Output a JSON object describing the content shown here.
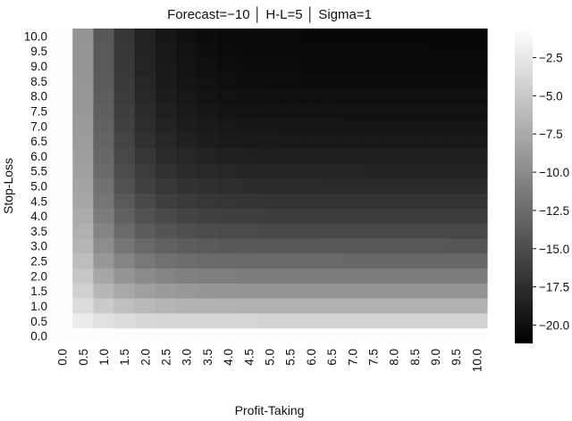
{
  "chart_data": {
    "type": "heatmap",
    "title": "Forecast=−10 │ H-L=5 │ Sigma=1",
    "xlabel": "Profit-Taking",
    "ylabel": "Stop-Loss",
    "x_ticks": [
      "0.0",
      "0.5",
      "1.0",
      "1.5",
      "2.0",
      "2.5",
      "3.0",
      "3.5",
      "4.0",
      "4.5",
      "5.0",
      "5.5",
      "6.0",
      "6.5",
      "7.0",
      "7.5",
      "8.0",
      "8.5",
      "9.0",
      "9.5",
      "10.0"
    ],
    "y_ticks": [
      "10.0",
      "9.5",
      "9.0",
      "8.5",
      "8.0",
      "7.5",
      "7.0",
      "6.5",
      "6.0",
      "5.5",
      "5.0",
      "4.5",
      "4.0",
      "3.5",
      "3.0",
      "2.5",
      "2.0",
      "1.5",
      "1.0",
      "0.5",
      "0.0"
    ],
    "x_range": [
      0,
      10
    ],
    "y_range": [
      0,
      10
    ],
    "grid": false,
    "colorbar": {
      "ticks": [
        "−2.5",
        "−5.0",
        "−7.5",
        "−10.0",
        "−12.5",
        "−15.0",
        "−17.5",
        "−20.0"
      ],
      "tick_values": [
        -2.5,
        -5.0,
        -7.5,
        -10.0,
        -12.5,
        -15.0,
        -17.5,
        -20.0
      ],
      "range": [
        -21.2,
        -0.6
      ],
      "colormap": "gray",
      "color_low": "#000000",
      "color_high": "#ffffff"
    },
    "value_model": {
      "description": "Sharpe-ratio-like value rises from about -0.8 near the origin toward about -21 where both Profit-Taking and Stop-Loss are large",
      "min": -21.2,
      "max": -0.8
    }
  }
}
